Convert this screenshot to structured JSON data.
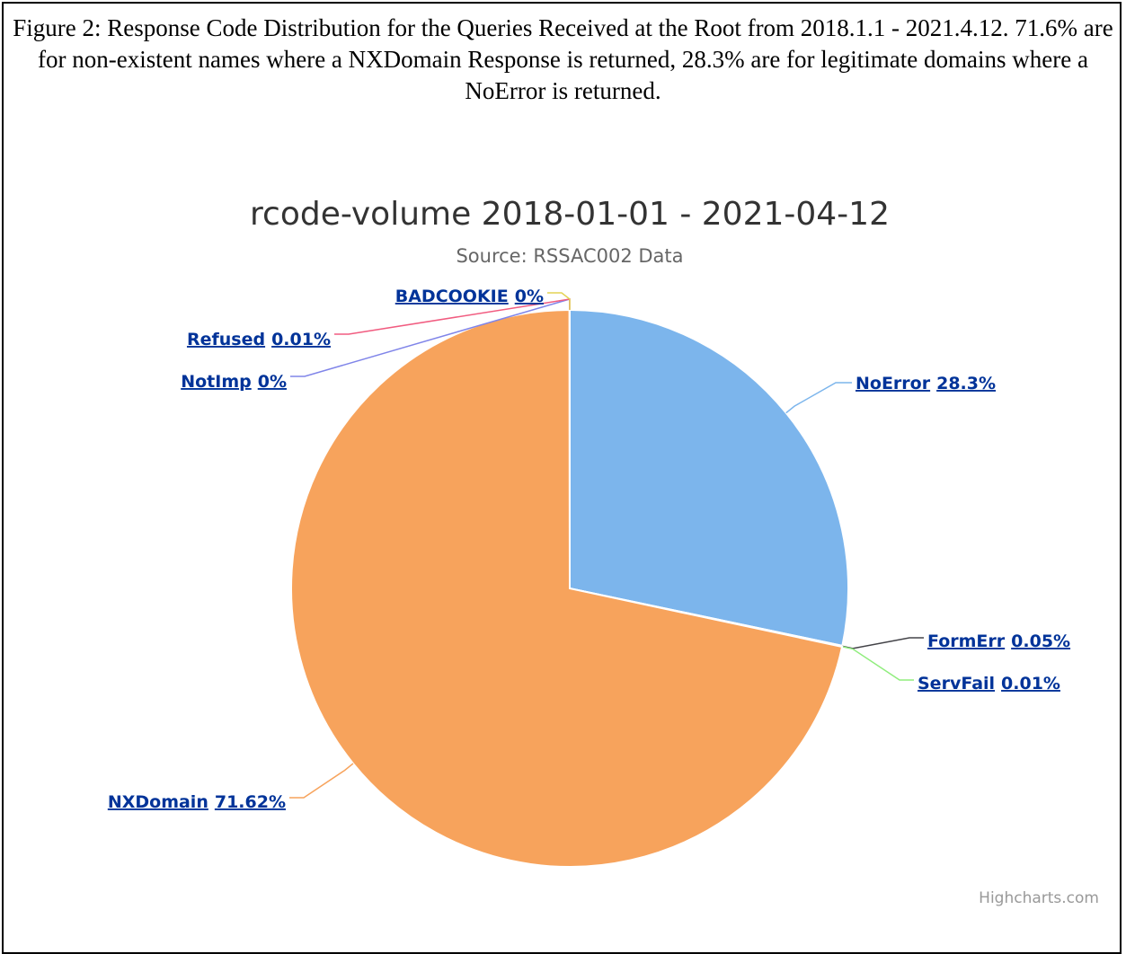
{
  "caption": "Figure 2: Response Code Distribution for the Queries Received at the Root from 2018.1.1 - 2021.4.12. 71.6% are for non-existent names where a NXDomain Response is returned, 28.3% are for legitimate domains where a NoError is returned.",
  "chart_data": {
    "type": "pie",
    "title": "rcode-volume 2018-01-01 - 2021-04-12",
    "subtitle": "Source: RSSAC002 Data",
    "credits": "Highcharts.com",
    "categories": [
      "NoError",
      "FormErr",
      "ServFail",
      "NXDomain",
      "NotImp",
      "Refused",
      "BADCOOKIE"
    ],
    "values": [
      28.3,
      0.05,
      0.01,
      71.62,
      0,
      0.01,
      0
    ],
    "value_labels": [
      "28.3%",
      "0.05%",
      "0.01%",
      "71.62%",
      "0%",
      "0.01%",
      "0%"
    ],
    "colors": [
      "#7cb5ec",
      "#434348",
      "#90ed7d",
      "#f7a35c",
      "#8085e9",
      "#f15c80",
      "#e4d354"
    ]
  }
}
